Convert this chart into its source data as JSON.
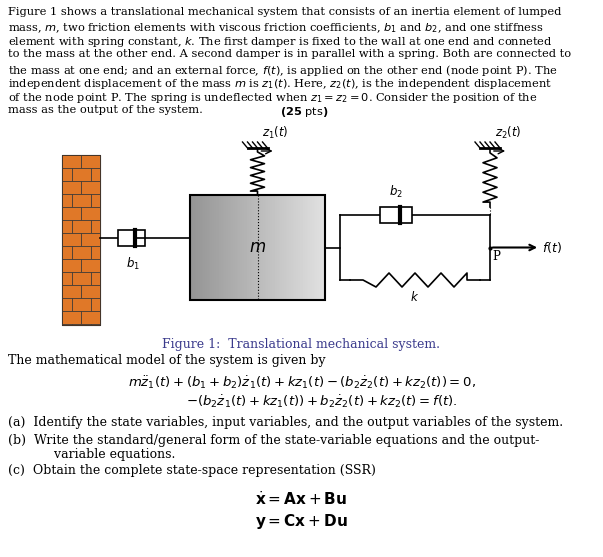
{
  "bg_color": "#ffffff",
  "blue_color": "#3a3a8c",
  "fig_w": 6.03,
  "fig_h": 5.57,
  "dpi": 100,
  "para_lines": [
    "Figure 1 shows a translational mechanical system that consists of an inertia element of lumped",
    "mass, $m$, two friction elements with viscous friction coefficients, $b_1$ and $b_2$, and one stiffness",
    "element with spring constant, $k$. The first damper is fixed to the wall at one end and conneted",
    "to the mass at the other end. A second damper is in parallel with a spring. Both are connected to",
    "the mass at one end; and an external force, $f(t)$, is applied on the other end (node point P). The",
    "independent displacement of the mass $m$ is $z_1(t)$. Here, $z_2(t)$, is the independent displacement",
    "of the node point P. The spring is undeflected when $z_1 = z_2 = 0$. Consider the position of the",
    "mass as the output of the system."
  ],
  "bold_suffix": " (25 pts)",
  "caption": "Figure 1:  Translational mechanical system.",
  "math_intro": "The mathematical model of the system is given by",
  "eq1": "$m\\ddot{z}_1(t) + (b_1 + b_2)\\dot{z}_1(t) + kz_1(t) - (b_2\\dot{z}_2(t) + kz_2(t)) = 0,$",
  "eq2": "$-(b_2\\dot{z}_1(t) + kz_1(t)) + b_2\\dot{z}_2(t) + kz_2(t) = f(t).$",
  "item_a": "(a)  Identify the state variables, input variables, and the output variables of the system.",
  "item_b1": "(b)  Write the standard/general form of the state-variable equations and the output-",
  "item_b2": "       variable equations.",
  "item_c": "(c)  Obtain the complete state-space representation (SSR)",
  "eq_x": "$\\dot{\\mathbf{x}} = \\mathbf{A}\\mathbf{x} + \\mathbf{B}\\mathbf{u}$",
  "eq_y": "$\\mathbf{y} = \\mathbf{C}\\mathbf{x} + \\mathbf{D}\\mathbf{u}$",
  "wall_color": "#E07828",
  "mass_color_light": "#c8c8c8",
  "mass_color_dark": "#888888"
}
